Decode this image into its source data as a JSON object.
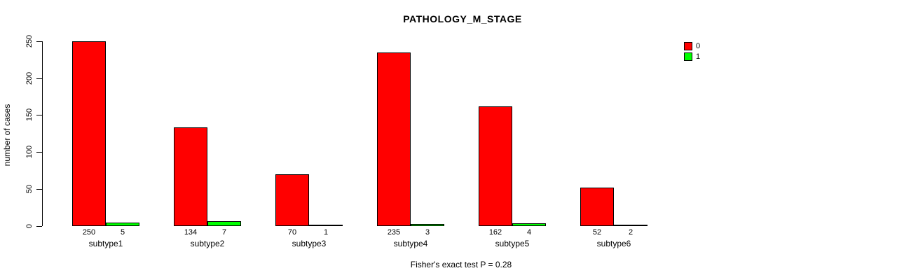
{
  "chart_data": {
    "type": "bar",
    "title": "PATHOLOGY_M_STAGE",
    "ylabel": "number of cases",
    "xlabel": "",
    "categories": [
      "subtype1",
      "subtype2",
      "subtype3",
      "subtype4",
      "subtype5",
      "subtype6"
    ],
    "series": [
      {
        "name": "0",
        "color": "#FF0000",
        "values": [
          250,
          134,
          70,
          235,
          162,
          52
        ]
      },
      {
        "name": "1",
        "color": "#00FF00",
        "values": [
          5,
          7,
          1,
          3,
          4,
          2
        ]
      }
    ],
    "ylim": [
      0,
      250
    ],
    "yticks": [
      0,
      50,
      100,
      150,
      200,
      250
    ],
    "grid": false,
    "legend_position": "top-right",
    "bar_value_labels_shown": true,
    "footer": "Fisher's exact test P = 0.28"
  }
}
